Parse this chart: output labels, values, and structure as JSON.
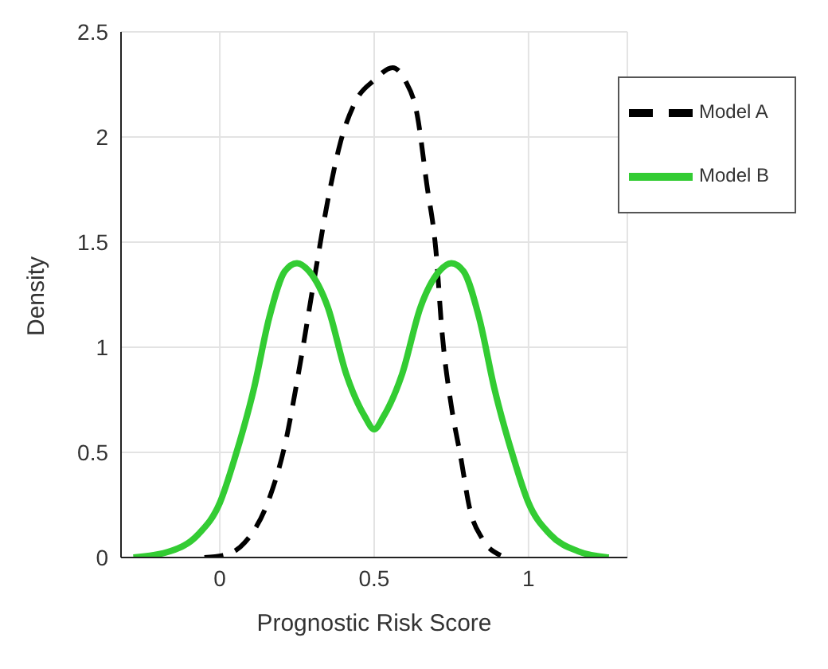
{
  "chart_data": {
    "type": "line",
    "xlabel": "Prognostic Risk Score",
    "ylabel": "Density",
    "xlim": [
      -0.32,
      1.32
    ],
    "xticks": [
      0,
      0.5,
      1
    ],
    "ylim": [
      0,
      2.5
    ],
    "yticks": [
      0,
      0.5,
      1,
      1.5,
      2,
      2.5
    ],
    "grid": true,
    "legend": "top right",
    "marker": "none",
    "series": [
      {
        "name": "Model A",
        "color": "#000000",
        "line_style": "dashed",
        "x": [
          -0.05,
          0.01,
          0.08,
          0.16,
          0.21,
          0.26,
          0.31,
          0.35,
          0.39,
          0.44,
          0.5,
          0.56,
          0.6,
          0.64,
          0.67,
          0.7,
          0.72,
          0.75,
          0.78,
          0.81,
          0.85,
          0.91
        ],
        "values": [
          0,
          0.01,
          0.07,
          0.28,
          0.53,
          0.92,
          1.36,
          1.7,
          1.97,
          2.17,
          2.27,
          2.33,
          2.27,
          2.1,
          1.78,
          1.46,
          1.07,
          0.72,
          0.48,
          0.23,
          0.09,
          0.01
        ]
      },
      {
        "name": "Model B",
        "color": "#33cc33",
        "line_style": "solid",
        "x": [
          -0.28,
          -0.16,
          -0.07,
          0,
          0.05,
          0.11,
          0.16,
          0.21,
          0.25,
          0.29,
          0.35,
          0.41,
          0.47,
          0.5,
          0.53,
          0.59,
          0.65,
          0.71,
          0.75,
          0.79,
          0.84,
          0.89,
          0.95,
          1,
          1.07,
          1.16,
          1.26
        ],
        "values": [
          0,
          0.03,
          0.11,
          0.26,
          0.48,
          0.8,
          1.14,
          1.36,
          1.4,
          1.36,
          1.19,
          0.87,
          0.67,
          0.61,
          0.67,
          0.87,
          1.19,
          1.36,
          1.4,
          1.36,
          1.14,
          0.8,
          0.48,
          0.26,
          0.11,
          0.03,
          0
        ]
      }
    ]
  }
}
